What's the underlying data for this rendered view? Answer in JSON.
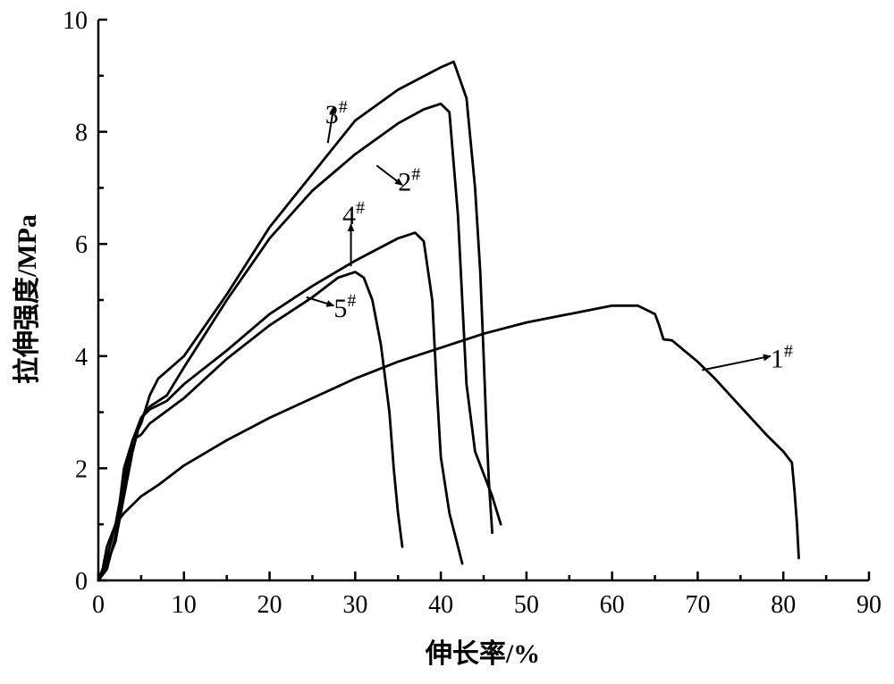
{
  "chart_data": {
    "type": "line",
    "title": "",
    "xlabel": "伸长率/%",
    "ylabel": "拉伸强度/MPa",
    "xlim": [
      0,
      90
    ],
    "ylim": [
      0,
      10
    ],
    "xticks": [
      0,
      10,
      20,
      30,
      40,
      50,
      60,
      70,
      80,
      90
    ],
    "yticks": [
      0,
      2,
      4,
      6,
      8,
      10
    ],
    "grid": false,
    "legend": "none",
    "line_color": "#000000",
    "series": [
      {
        "name": "1#",
        "label_main": "1",
        "label_sup": "#",
        "points": [
          [
            0,
            0
          ],
          [
            0.5,
            0.2
          ],
          [
            1,
            0.6
          ],
          [
            2,
            1.0
          ],
          [
            3,
            1.2
          ],
          [
            4,
            1.35
          ],
          [
            5,
            1.5
          ],
          [
            7,
            1.7
          ],
          [
            10,
            2.05
          ],
          [
            15,
            2.5
          ],
          [
            20,
            2.9
          ],
          [
            25,
            3.25
          ],
          [
            30,
            3.6
          ],
          [
            35,
            3.9
          ],
          [
            40,
            4.15
          ],
          [
            45,
            4.4
          ],
          [
            50,
            4.6
          ],
          [
            55,
            4.75
          ],
          [
            60,
            4.9
          ],
          [
            63,
            4.9
          ],
          [
            65,
            4.75
          ],
          [
            65.5,
            4.55
          ],
          [
            66,
            4.3
          ],
          [
            67,
            4.28
          ],
          [
            70,
            3.9
          ],
          [
            72,
            3.6
          ],
          [
            75,
            3.1
          ],
          [
            78,
            2.6
          ],
          [
            80,
            2.3
          ],
          [
            81,
            2.1
          ],
          [
            81.3,
            1.6
          ],
          [
            81.6,
            1.0
          ],
          [
            81.8,
            0.4
          ]
        ]
      },
      {
        "name": "2#",
        "label_main": "2",
        "label_sup": "#",
        "points": [
          [
            0,
            0
          ],
          [
            1,
            0.3
          ],
          [
            2,
            0.7
          ],
          [
            3,
            1.5
          ],
          [
            4,
            2.3
          ],
          [
            5,
            2.9
          ],
          [
            6,
            3.1
          ],
          [
            8,
            3.3
          ],
          [
            10,
            3.8
          ],
          [
            15,
            5.0
          ],
          [
            20,
            6.1
          ],
          [
            25,
            6.95
          ],
          [
            30,
            7.6
          ],
          [
            35,
            8.15
          ],
          [
            38,
            8.4
          ],
          [
            40,
            8.5
          ],
          [
            41,
            8.35
          ],
          [
            42,
            6.5
          ],
          [
            43,
            3.5
          ],
          [
            44,
            2.3
          ],
          [
            45,
            1.9
          ],
          [
            46,
            1.5
          ],
          [
            47,
            1.0
          ]
        ]
      },
      {
        "name": "3#",
        "label_main": "3",
        "label_sup": "#",
        "points": [
          [
            0,
            0
          ],
          [
            1,
            0.4
          ],
          [
            2,
            1.0
          ],
          [
            3,
            1.8
          ],
          [
            4,
            2.5
          ],
          [
            5,
            2.8
          ],
          [
            6,
            3.3
          ],
          [
            7,
            3.6
          ],
          [
            10,
            4.0
          ],
          [
            15,
            5.1
          ],
          [
            20,
            6.3
          ],
          [
            25,
            7.25
          ],
          [
            30,
            8.2
          ],
          [
            35,
            8.75
          ],
          [
            40,
            9.15
          ],
          [
            41.5,
            9.25
          ],
          [
            43,
            8.6
          ],
          [
            44,
            7.0
          ],
          [
            44.6,
            5.5
          ],
          [
            45,
            4.0
          ],
          [
            45.3,
            2.8
          ],
          [
            45.6,
            1.8
          ],
          [
            46,
            0.85
          ]
        ]
      },
      {
        "name": "4#",
        "label_main": "4",
        "label_sup": "#",
        "points": [
          [
            0,
            0
          ],
          [
            1,
            0.3
          ],
          [
            2,
            0.7
          ],
          [
            3,
            1.6
          ],
          [
            4,
            2.5
          ],
          [
            5,
            2.9
          ],
          [
            6,
            3.05
          ],
          [
            8,
            3.2
          ],
          [
            10,
            3.5
          ],
          [
            15,
            4.1
          ],
          [
            20,
            4.75
          ],
          [
            25,
            5.25
          ],
          [
            30,
            5.7
          ],
          [
            35,
            6.1
          ],
          [
            37,
            6.2
          ],
          [
            38,
            6.05
          ],
          [
            39,
            5.0
          ],
          [
            39.5,
            3.5
          ],
          [
            40,
            2.2
          ],
          [
            41,
            1.2
          ],
          [
            42,
            0.6
          ],
          [
            42.5,
            0.3
          ]
        ]
      },
      {
        "name": "5#",
        "label_main": "5",
        "label_sup": "#",
        "points": [
          [
            0,
            0
          ],
          [
            1,
            0.2
          ],
          [
            2,
            0.8
          ],
          [
            3,
            2.0
          ],
          [
            4,
            2.5
          ],
          [
            5,
            2.6
          ],
          [
            6,
            2.8
          ],
          [
            10,
            3.25
          ],
          [
            15,
            3.95
          ],
          [
            20,
            4.55
          ],
          [
            25,
            5.05
          ],
          [
            28,
            5.4
          ],
          [
            30,
            5.5
          ],
          [
            31,
            5.4
          ],
          [
            32,
            5.0
          ],
          [
            33,
            4.2
          ],
          [
            34,
            3.0
          ],
          [
            34.5,
            2.0
          ],
          [
            35,
            1.2
          ],
          [
            35.5,
            0.6
          ]
        ]
      }
    ],
    "annotations": [
      {
        "series": "1#",
        "arrow_from": [
          70.5,
          3.75
        ],
        "arrow_to": [
          78.5,
          4.0
        ],
        "label_at": [
          78.5,
          3.8
        ]
      },
      {
        "series": "2#",
        "arrow_from": [
          32.5,
          7.4
        ],
        "arrow_to": [
          35.5,
          7.05
        ],
        "label_at": [
          35.0,
          6.95
        ]
      },
      {
        "series": "3#",
        "arrow_from": [
          26.8,
          7.8
        ],
        "arrow_to": [
          27.5,
          8.45
        ],
        "label_at": [
          26.5,
          8.15
        ]
      },
      {
        "series": "4#",
        "arrow_from": [
          29.5,
          5.6
        ],
        "arrow_to": [
          29.5,
          6.35
        ],
        "label_at": [
          28.5,
          6.35
        ]
      },
      {
        "series": "5#",
        "arrow_from": [
          24.3,
          5.05
        ],
        "arrow_to": [
          27.5,
          4.9
        ],
        "label_at": [
          27.5,
          4.7
        ]
      }
    ]
  }
}
